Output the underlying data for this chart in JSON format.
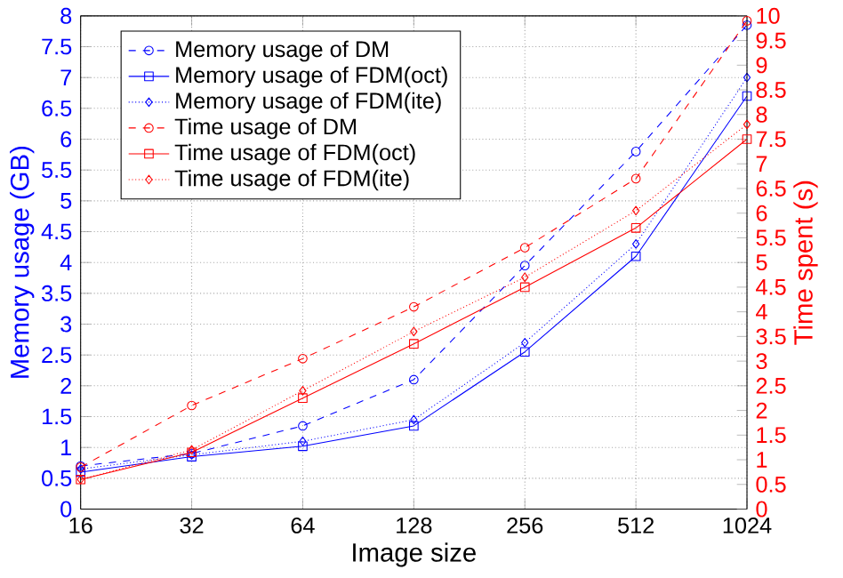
{
  "chart_data": {
    "type": "line",
    "xlabel": "Image size",
    "ylabel": "Memory usage (GB)",
    "y2label": "Time spent (s)",
    "x": [
      16,
      32,
      64,
      128,
      256,
      512,
      1024
    ],
    "log": "x",
    "grid": true,
    "legend": "top left",
    "xlim": [
      16,
      1024
    ],
    "xticks": [
      16,
      32,
      64,
      128,
      256,
      512,
      1024
    ],
    "ylim": [
      0,
      8
    ],
    "yticks": [
      0,
      0.5,
      1,
      1.5,
      2,
      2.5,
      3,
      3.5,
      4,
      4.5,
      5,
      5.5,
      6,
      6.5,
      7,
      7.5,
      8
    ],
    "y2lim": [
      0,
      10
    ],
    "y2ticks": [
      0,
      0.5,
      1,
      1.5,
      2,
      2.5,
      3,
      3.5,
      4,
      4.5,
      5,
      5.5,
      6,
      6.5,
      7,
      7.5,
      8,
      8.5,
      9,
      9.5,
      10
    ],
    "series": [
      {
        "name": "Memory usage of DM",
        "color": "#0000ff",
        "marker": "circle",
        "line_style": "dashed",
        "values": [
          0.7,
          0.9,
          1.35,
          2.1,
          3.95,
          5.8,
          7.85
        ]
      },
      {
        "name": "Memory usage of FDM(oct)",
        "color": "#0000ff",
        "marker": "square",
        "line_style": "solid",
        "values": [
          0.6,
          0.85,
          1.02,
          1.35,
          2.55,
          4.1,
          6.7
        ]
      },
      {
        "name": "Memory usage of FDM(ite)",
        "color": "#0000ff",
        "marker": "diamond",
        "line_style": "dotted",
        "values": [
          0.65,
          0.88,
          1.1,
          1.45,
          2.7,
          4.3,
          7.0
        ]
      },
      {
        "name": "Time usage of DM",
        "color": "#ff0000",
        "marker": "circle",
        "line_style": "dashed",
        "axis": "y2",
        "values": [
          0.85,
          2.1,
          3.05,
          4.1,
          5.3,
          6.7,
          9.9
        ]
      },
      {
        "name": "Time usage of FDM(oct)",
        "color": "#ff0000",
        "marker": "square",
        "line_style": "solid",
        "axis": "y2",
        "values": [
          0.6,
          1.15,
          2.25,
          3.35,
          4.5,
          5.7,
          7.5
        ]
      },
      {
        "name": "Time usage of FDM(ite)",
        "color": "#ff0000",
        "marker": "diamond",
        "line_style": "dotted",
        "axis": "y2",
        "values": [
          0.6,
          1.2,
          2.4,
          3.6,
          4.7,
          6.05,
          7.8
        ]
      }
    ]
  }
}
